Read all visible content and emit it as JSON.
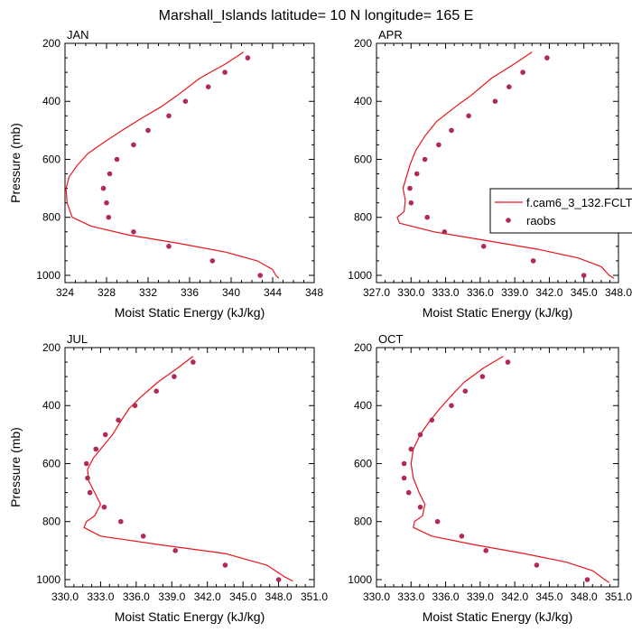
{
  "title": "Marshall_Islands  latitude= 10 N longitude= 165 E",
  "colors": {
    "model": "#e8141c",
    "obs": "#b02a55"
  },
  "legend": {
    "model_label": "f.cam6_3_132.FCLT",
    "obs_label": "raobs"
  },
  "chart_data": [
    {
      "type": "line",
      "panel_label": "JAN",
      "xlabel": "Moist Static Energy (kJ/kg)",
      "ylabel": "Pressure (mb)",
      "xlim": [
        324,
        348
      ],
      "ylim": [
        1025,
        200
      ],
      "xticks": [
        324,
        328,
        332,
        336,
        340,
        344,
        348
      ],
      "xtick_labels": [
        "324",
        "328",
        "332",
        "336",
        "340",
        "344",
        "348"
      ],
      "yticks": [
        200,
        400,
        600,
        800,
        1000
      ],
      "ytick_labels": [
        "200",
        "400",
        "600",
        "800",
        "1000"
      ],
      "series": [
        {
          "name": "f.cam6_3_132.FCLT",
          "kind": "line",
          "x": [
            341.2,
            339.5,
            337.0,
            334.8,
            333.2,
            331.3,
            329.5,
            327.8,
            326.2,
            325.2,
            324.4,
            324.1,
            324.2,
            324.7,
            326.5,
            330.0,
            335.0,
            339.5,
            342.5,
            344.0,
            344.3,
            344.6
          ],
          "y": [
            230,
            270,
            320,
            380,
            420,
            460,
            500,
            540,
            580,
            620,
            660,
            700,
            750,
            800,
            830,
            860,
            890,
            920,
            950,
            980,
            1000,
            1010
          ]
        },
        {
          "name": "raobs",
          "kind": "scatter",
          "x": [
            341.6,
            339.4,
            337.8,
            335.6,
            334.0,
            332.0,
            330.6,
            329.0,
            328.3,
            327.7,
            328.0,
            328.2,
            330.6,
            334.0,
            338.2,
            342.8
          ],
          "y": [
            250,
            300,
            350,
            400,
            450,
            500,
            550,
            600,
            650,
            700,
            750,
            800,
            850,
            900,
            950,
            1000
          ]
        }
      ]
    },
    {
      "type": "line",
      "panel_label": "APR",
      "xlabel": "Moist Static Energy (kJ/kg)",
      "ylabel": "",
      "xlim": [
        327.0,
        348.0
      ],
      "ylim": [
        1025,
        200
      ],
      "xticks": [
        327,
        330,
        333,
        336,
        339,
        342,
        345,
        348
      ],
      "xtick_labels": [
        "327.0",
        "330.0",
        "333.0",
        "336.0",
        "339.0",
        "342.0",
        "345.0",
        "348.0"
      ],
      "yticks": [
        200,
        400,
        600,
        800,
        1000
      ],
      "ytick_labels": [
        "200",
        "400",
        "600",
        "800",
        "1000"
      ],
      "series": [
        {
          "name": "f.cam6_3_132.FCLT",
          "kind": "line",
          "x": [
            340.5,
            339.0,
            337.0,
            335.2,
            333.8,
            332.2,
            331.2,
            330.4,
            329.9,
            329.6,
            329.3,
            329.5,
            329.4,
            328.8,
            329.0,
            332.0,
            336.5,
            341.0,
            344.5,
            346.5,
            347.2,
            347.6
          ],
          "y": [
            230,
            270,
            320,
            380,
            420,
            470,
            520,
            570,
            620,
            660,
            700,
            740,
            780,
            800,
            820,
            850,
            880,
            910,
            940,
            970,
            1000,
            1010
          ]
        },
        {
          "name": "raobs",
          "kind": "scatter",
          "x": [
            341.8,
            339.7,
            338.5,
            337.3,
            335.0,
            333.5,
            332.4,
            331.2,
            330.5,
            329.9,
            330.0,
            331.4,
            332.9,
            336.3,
            340.6,
            345.0
          ],
          "y": [
            250,
            300,
            350,
            400,
            450,
            500,
            550,
            600,
            650,
            700,
            750,
            800,
            850,
            900,
            950,
            1000
          ]
        }
      ]
    },
    {
      "type": "line",
      "panel_label": "JUL",
      "xlabel": "Moist Static Energy (kJ/kg)",
      "ylabel": "Pressure (mb)",
      "xlim": [
        330.0,
        351.0
      ],
      "ylim": [
        1025,
        200
      ],
      "xticks": [
        330,
        333,
        336,
        339,
        342,
        345,
        348,
        351
      ],
      "xtick_labels": [
        "330.0",
        "333.0",
        "336.0",
        "339.0",
        "342.0",
        "345.0",
        "348.0",
        "351.0"
      ],
      "yticks": [
        200,
        400,
        600,
        800,
        1000
      ],
      "ytick_labels": [
        "200",
        "400",
        "600",
        "800",
        "1000"
      ],
      "series": [
        {
          "name": "f.cam6_3_132.FCLT",
          "kind": "line",
          "x": [
            340.8,
            339.5,
            337.8,
            336.4,
            335.4,
            334.6,
            334.0,
            333.2,
            332.4,
            331.9,
            332.0,
            332.5,
            333.0,
            332.5,
            331.8,
            331.6,
            333.0,
            338.0,
            343.5,
            347.0,
            348.5,
            349.2
          ],
          "y": [
            230,
            270,
            320,
            370,
            410,
            460,
            500,
            540,
            580,
            620,
            660,
            700,
            740,
            780,
            800,
            820,
            850,
            880,
            910,
            950,
            990,
            1005
          ]
        },
        {
          "name": "raobs",
          "kind": "scatter",
          "x": [
            340.8,
            339.2,
            337.7,
            335.9,
            334.5,
            333.4,
            332.6,
            331.8,
            331.9,
            332.1,
            333.3,
            334.7,
            336.6,
            339.3,
            343.5,
            348.0
          ],
          "y": [
            250,
            300,
            350,
            400,
            450,
            500,
            550,
            600,
            650,
            700,
            750,
            800,
            850,
            900,
            950,
            1000
          ]
        }
      ]
    },
    {
      "type": "line",
      "panel_label": "OCT",
      "xlabel": "Moist Static Energy (kJ/kg)",
      "ylabel": "",
      "xlim": [
        330.0,
        351.0
      ],
      "ylim": [
        1025,
        200
      ],
      "xticks": [
        330,
        333,
        336,
        339,
        342,
        345,
        348,
        351
      ],
      "xtick_labels": [
        "330.0",
        "333.0",
        "336.0",
        "339.0",
        "342.0",
        "345.0",
        "348.0",
        "351.0"
      ],
      "yticks": [
        200,
        400,
        600,
        800,
        1000
      ],
      "ytick_labels": [
        "200",
        "400",
        "600",
        "800",
        "1000"
      ],
      "series": [
        {
          "name": "f.cam6_3_132.FCLT",
          "kind": "line",
          "x": [
            341.0,
            339.3,
            337.6,
            336.4,
            335.5,
            334.5,
            333.8,
            333.2,
            333.0,
            333.2,
            333.7,
            334.2,
            334.0,
            333.3,
            333.2,
            334.8,
            338.5,
            342.8,
            346.5,
            348.8,
            349.8,
            350.2
          ],
          "y": [
            230,
            270,
            320,
            370,
            410,
            460,
            500,
            550,
            600,
            650,
            700,
            740,
            780,
            800,
            820,
            850,
            880,
            910,
            940,
            970,
            1000,
            1010
          ]
        },
        {
          "name": "raobs",
          "kind": "scatter",
          "x": [
            341.4,
            339.2,
            337.7,
            336.5,
            334.8,
            333.8,
            333.0,
            332.4,
            332.4,
            332.8,
            333.8,
            335.3,
            337.4,
            339.5,
            343.9,
            348.3
          ],
          "y": [
            250,
            300,
            350,
            400,
            450,
            500,
            550,
            600,
            650,
            700,
            750,
            800,
            850,
            900,
            950,
            1000
          ]
        }
      ]
    }
  ]
}
